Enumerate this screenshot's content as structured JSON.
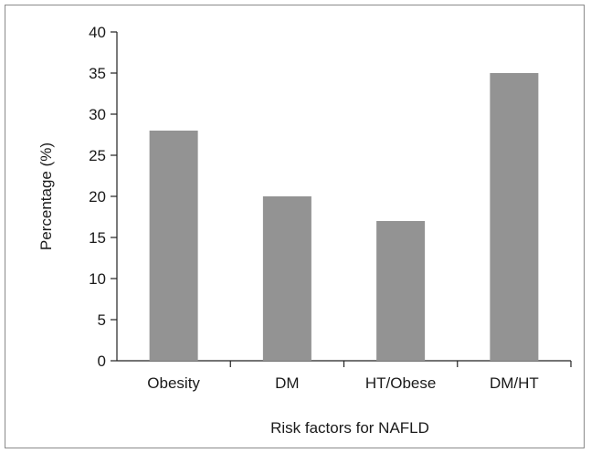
{
  "chart_data": {
    "type": "bar",
    "categories": [
      "Obesity",
      "DM",
      "HT/Obese",
      "DM/HT"
    ],
    "values": [
      28,
      20,
      17,
      35
    ],
    "xlabel": "Risk factors for NAFLD",
    "ylabel": "Percentage (%)",
    "ylim": [
      0,
      40
    ],
    "yticks": [
      "0",
      "5",
      "10",
      "15",
      "20",
      "25",
      "30",
      "35",
      "40"
    ],
    "grid": false,
    "bar_color": "#939393"
  }
}
